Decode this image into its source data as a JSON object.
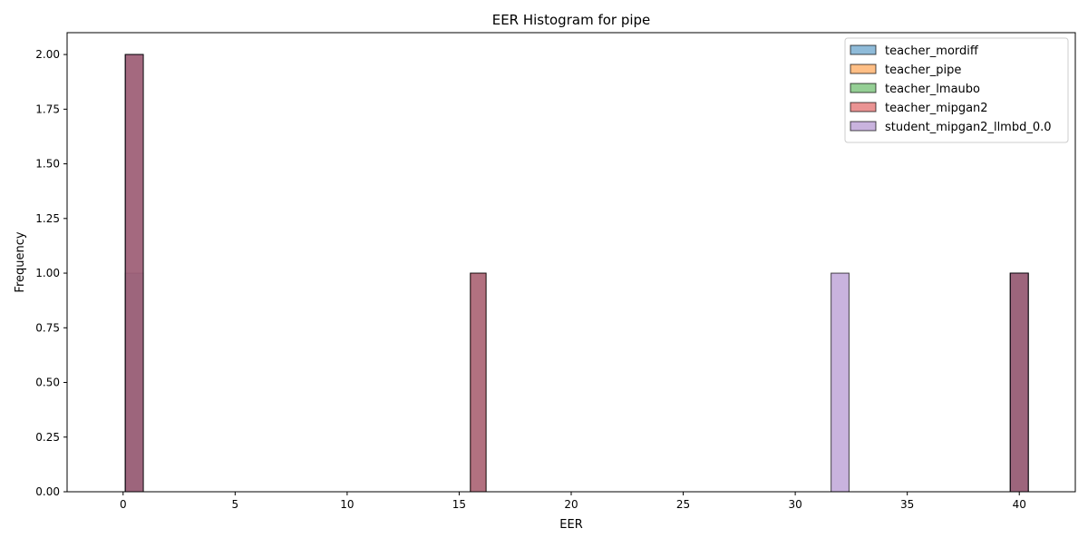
{
  "chart_data": {
    "type": "bar",
    "title": "EER Histogram for pipe",
    "xlabel": "EER",
    "ylabel": "Frequency",
    "xlim": [
      -2.5,
      42.5
    ],
    "ylim": [
      0,
      2.1
    ],
    "xticks": [
      0,
      5,
      10,
      15,
      20,
      25,
      30,
      35,
      40
    ],
    "yticks": [
      0.0,
      0.25,
      0.5,
      0.75,
      1.0,
      1.25,
      1.5,
      1.75,
      2.0
    ],
    "ytick_labels": [
      "0.00",
      "0.25",
      "0.50",
      "0.75",
      "1.00",
      "1.25",
      "1.50",
      "1.75",
      "2.00"
    ],
    "bar_alpha": 0.5,
    "grid": false,
    "legend_position": "top-right",
    "series": [
      {
        "name": "teacher_mordiff",
        "color": "#1f77b4",
        "bins": [
          {
            "x0": 0.1,
            "x1": 0.9,
            "count": 1
          },
          {
            "x0": 15.5,
            "x1": 16.2,
            "count": 1
          },
          {
            "x0": 39.6,
            "x1": 40.4,
            "count": 1
          }
        ]
      },
      {
        "name": "teacher_pipe",
        "color": "#ff7f0e",
        "bins": [
          {
            "x0": 0.1,
            "x1": 0.9,
            "count": 2
          },
          {
            "x0": 39.6,
            "x1": 40.4,
            "count": 1
          }
        ]
      },
      {
        "name": "teacher_lmaubo",
        "color": "#2ca02c",
        "bins": [
          {
            "x0": 0.1,
            "x1": 0.9,
            "count": 2
          },
          {
            "x0": 39.6,
            "x1": 40.4,
            "count": 1
          }
        ]
      },
      {
        "name": "teacher_mipgan2",
        "color": "#d62728",
        "bins": [
          {
            "x0": 0.1,
            "x1": 0.9,
            "count": 2
          },
          {
            "x0": 15.5,
            "x1": 16.2,
            "count": 1
          },
          {
            "x0": 39.6,
            "x1": 40.4,
            "count": 1
          }
        ]
      },
      {
        "name": "student_mipgan2_llmbd_0.0",
        "color": "#9467bd",
        "bins": [
          {
            "x0": 0.1,
            "x1": 0.9,
            "count": 2
          },
          {
            "x0": 31.6,
            "x1": 32.4,
            "count": 1
          },
          {
            "x0": 39.6,
            "x1": 40.4,
            "count": 1
          }
        ]
      }
    ]
  }
}
